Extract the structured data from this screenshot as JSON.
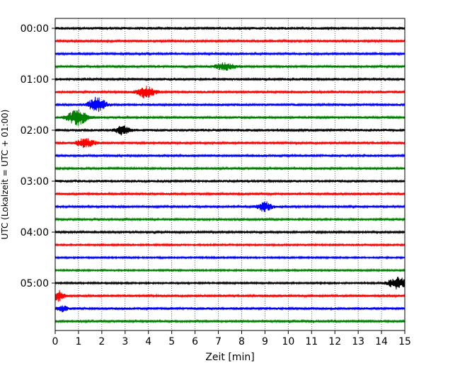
{
  "chart_data": {
    "type": "line",
    "title": "",
    "xlabel": "Zeit  [min]",
    "ylabel": "UTC (Lokalzeit = UTC + 01:00)",
    "xlim": [
      0,
      15
    ],
    "x_ticks": [
      "0",
      "1",
      "2",
      "3",
      "4",
      "5",
      "6",
      "7",
      "8",
      "9",
      "10",
      "11",
      "12",
      "13",
      "14",
      "15"
    ],
    "y_ticks": [
      "00:00",
      "01:00",
      "02:00",
      "03:00",
      "04:00",
      "05:00"
    ],
    "grid": "vertical-dotted",
    "trace_interval_min": 15,
    "trace_colors": [
      "#000000",
      "#ff0000",
      "#0000ff",
      "#008000"
    ],
    "traces": [
      {
        "start": "00:00",
        "noise": 0.22,
        "events": []
      },
      {
        "start": "00:15",
        "noise": 0.18,
        "events": []
      },
      {
        "start": "00:30",
        "noise": 0.18,
        "events": []
      },
      {
        "start": "00:45",
        "noise": 0.18,
        "events": [
          {
            "t": 7.3,
            "amp": 0.6,
            "width": 0.6
          }
        ]
      },
      {
        "start": "01:00",
        "noise": 0.2,
        "events": []
      },
      {
        "start": "01:15",
        "noise": 0.2,
        "events": [
          {
            "t": 3.9,
            "amp": 1.0,
            "width": 0.5
          }
        ]
      },
      {
        "start": "01:30",
        "noise": 0.2,
        "events": [
          {
            "t": 1.8,
            "amp": 1.3,
            "width": 0.5
          }
        ]
      },
      {
        "start": "01:45",
        "noise": 0.2,
        "events": [
          {
            "t": 0.95,
            "amp": 1.4,
            "width": 0.55
          }
        ]
      },
      {
        "start": "02:00",
        "noise": 0.22,
        "events": [
          {
            "t": 2.9,
            "amp": 0.8,
            "width": 0.4
          }
        ]
      },
      {
        "start": "02:15",
        "noise": 0.2,
        "events": [
          {
            "t": 1.3,
            "amp": 0.8,
            "width": 0.5
          }
        ]
      },
      {
        "start": "02:30",
        "noise": 0.2,
        "events": []
      },
      {
        "start": "02:45",
        "noise": 0.18,
        "events": []
      },
      {
        "start": "03:00",
        "noise": 0.22,
        "events": []
      },
      {
        "start": "03:15",
        "noise": 0.2,
        "events": []
      },
      {
        "start": "03:30",
        "noise": 0.18,
        "events": [
          {
            "t": 9.0,
            "amp": 0.9,
            "width": 0.4
          }
        ]
      },
      {
        "start": "03:45",
        "noise": 0.16,
        "events": []
      },
      {
        "start": "04:00",
        "noise": 0.18,
        "events": []
      },
      {
        "start": "04:15",
        "noise": 0.14,
        "events": []
      },
      {
        "start": "04:30",
        "noise": 0.14,
        "events": []
      },
      {
        "start": "04:45",
        "noise": 0.14,
        "events": []
      },
      {
        "start": "05:00",
        "noise": 0.14,
        "events": [
          {
            "t": 14.7,
            "amp": 1.0,
            "width": 0.6
          }
        ]
      },
      {
        "start": "05:15",
        "noise": 0.2,
        "events": [
          {
            "t": 0.15,
            "amp": 0.9,
            "width": 0.3
          }
        ]
      },
      {
        "start": "05:30",
        "noise": 0.22,
        "events": [
          {
            "t": 0.3,
            "amp": 0.5,
            "width": 0.3
          }
        ]
      },
      {
        "start": "05:45",
        "noise": 0.18,
        "events": []
      }
    ]
  }
}
